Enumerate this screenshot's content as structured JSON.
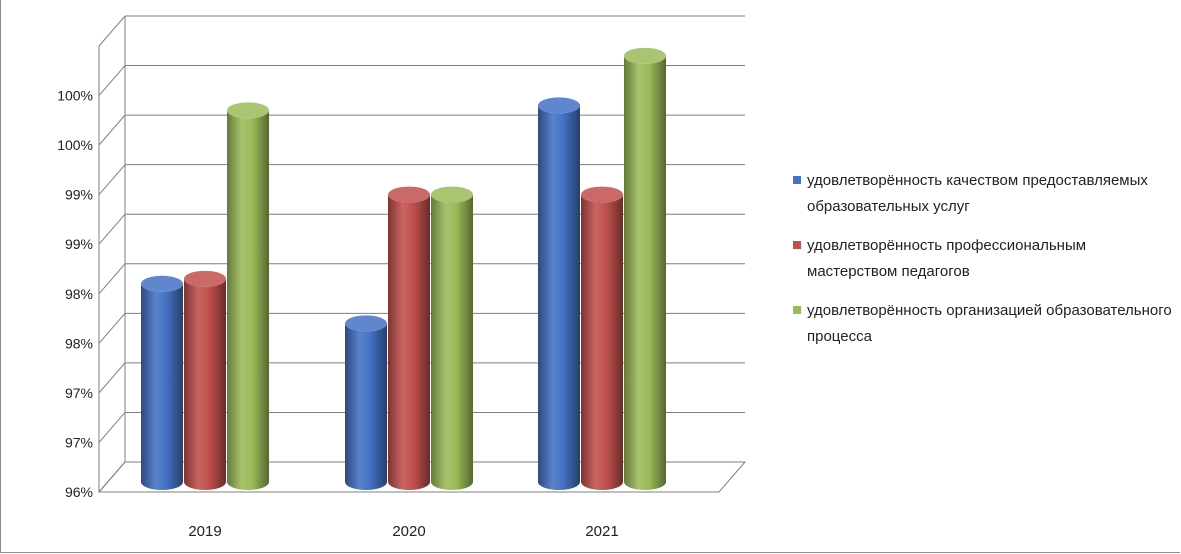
{
  "chart_data": {
    "type": "bar",
    "categories": [
      "2019",
      "2020",
      "2021"
    ],
    "series": [
      {
        "name": "удовлетворённость качеством предоставляемых образовательных услуг",
        "color": "#4472c4",
        "values": [
          98.0,
          97.6,
          99.8
        ]
      },
      {
        "name": "удовлетворённость профессиональным мастерством педагогов",
        "color": "#c0504d",
        "values": [
          98.05,
          98.9,
          98.9
        ]
      },
      {
        "name": "удовлетворённость организацией образовательного процесса",
        "color": "#9bbb59",
        "values": [
          99.75,
          98.9,
          100.3
        ]
      }
    ],
    "y_ticks": [
      {
        "value": 96.0,
        "label": "96%"
      },
      {
        "value": 96.5,
        "label": "97%"
      },
      {
        "value": 97.0,
        "label": "97%"
      },
      {
        "value": 97.5,
        "label": "98%"
      },
      {
        "value": 98.0,
        "label": "98%"
      },
      {
        "value": 98.5,
        "label": "99%"
      },
      {
        "value": 99.0,
        "label": "99%"
      },
      {
        "value": 99.5,
        "label": "100%"
      },
      {
        "value": 100.0,
        "label": "100%"
      },
      {
        "value": 100.5,
        "label": ""
      }
    ],
    "ylim": [
      96,
      100.5
    ],
    "title": "",
    "xlabel": "",
    "ylabel": "",
    "legend_position": "right",
    "grid": true,
    "style": "3d-cylinder"
  }
}
